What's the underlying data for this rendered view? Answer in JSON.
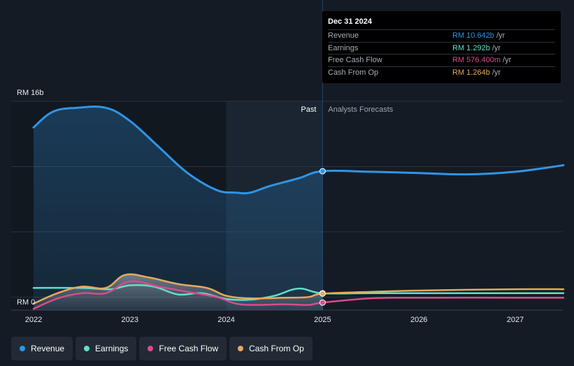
{
  "chart_data": {
    "type": "area",
    "y_top_label": "RM 16b",
    "y_zero_label": "RM 0",
    "ylim": [
      0,
      16
    ],
    "x_ticks": [
      "2022",
      "2023",
      "2024",
      "2025",
      "2026",
      "2027"
    ],
    "past_label": "Past",
    "forecast_label": "Analysts Forecasts",
    "divider_x": 2025.0,
    "highlight_start_x": 2024.0,
    "series": [
      {
        "name": "Revenue",
        "color": "#2f95e6",
        "points": [
          [
            2022.0,
            14.0
          ],
          [
            2022.2,
            15.2
          ],
          [
            2022.45,
            15.5
          ],
          [
            2022.75,
            15.5
          ],
          [
            2023.0,
            14.5
          ],
          [
            2023.3,
            12.5
          ],
          [
            2023.6,
            10.5
          ],
          [
            2023.9,
            9.2
          ],
          [
            2024.1,
            9.0
          ],
          [
            2024.25,
            9.0
          ],
          [
            2024.45,
            9.5
          ],
          [
            2024.75,
            10.1
          ],
          [
            2025.0,
            10.642
          ],
          [
            2025.5,
            10.6
          ],
          [
            2026.0,
            10.5
          ],
          [
            2026.5,
            10.4
          ],
          [
            2027.0,
            10.6
          ],
          [
            2027.5,
            11.1
          ]
        ]
      },
      {
        "name": "Earnings",
        "color": "#5fe0c9",
        "points": [
          [
            2022.0,
            1.7
          ],
          [
            2022.5,
            1.7
          ],
          [
            2022.8,
            1.6
          ],
          [
            2023.0,
            1.9
          ],
          [
            2023.25,
            1.8
          ],
          [
            2023.5,
            1.2
          ],
          [
            2023.75,
            1.3
          ],
          [
            2024.0,
            0.85
          ],
          [
            2024.25,
            0.8
          ],
          [
            2024.5,
            1.1
          ],
          [
            2024.75,
            1.65
          ],
          [
            2025.0,
            1.292
          ],
          [
            2025.5,
            1.3
          ],
          [
            2026.0,
            1.3
          ],
          [
            2027.0,
            1.3
          ],
          [
            2027.5,
            1.3
          ]
        ]
      },
      {
        "name": "Free Cash Flow",
        "color": "#d84c8c",
        "points": [
          [
            2022.0,
            0.1
          ],
          [
            2022.25,
            0.9
          ],
          [
            2022.5,
            1.3
          ],
          [
            2022.75,
            1.3
          ],
          [
            2023.0,
            2.2
          ],
          [
            2023.3,
            1.8
          ],
          [
            2023.6,
            1.4
          ],
          [
            2023.9,
            1.0
          ],
          [
            2024.1,
            0.5
          ],
          [
            2024.3,
            0.4
          ],
          [
            2024.6,
            0.45
          ],
          [
            2024.85,
            0.4
          ],
          [
            2025.0,
            0.5764
          ],
          [
            2025.5,
            0.9
          ],
          [
            2026.0,
            0.95
          ],
          [
            2027.0,
            0.95
          ],
          [
            2027.5,
            0.95
          ]
        ]
      },
      {
        "name": "Cash From Op",
        "color": "#e6a95c",
        "points": [
          [
            2022.0,
            0.5
          ],
          [
            2022.25,
            1.3
          ],
          [
            2022.5,
            1.8
          ],
          [
            2022.75,
            1.7
          ],
          [
            2022.95,
            2.7
          ],
          [
            2023.2,
            2.5
          ],
          [
            2023.5,
            2.0
          ],
          [
            2023.8,
            1.7
          ],
          [
            2024.0,
            1.1
          ],
          [
            2024.25,
            0.9
          ],
          [
            2024.6,
            0.95
          ],
          [
            2024.85,
            1.0
          ],
          [
            2025.0,
            1.264
          ],
          [
            2025.5,
            1.4
          ],
          [
            2026.0,
            1.5
          ],
          [
            2027.0,
            1.6
          ],
          [
            2027.5,
            1.6
          ]
        ]
      }
    ]
  },
  "tooltip": {
    "date": "Dec 31 2024",
    "rows": [
      {
        "name": "Revenue",
        "value": "RM 10.642b",
        "unit": "/yr",
        "color": "#2f95e6"
      },
      {
        "name": "Earnings",
        "value": "RM 1.292b",
        "unit": "/yr",
        "color": "#5fe0c9"
      },
      {
        "name": "Free Cash Flow",
        "value": "RM 576.400m",
        "unit": "/yr",
        "color": "#d84c8c"
      },
      {
        "name": "Cash From Op",
        "value": "RM 1.264b",
        "unit": "/yr",
        "color": "#e6a95c"
      }
    ]
  },
  "legend": [
    {
      "label": "Revenue",
      "color": "#2f95e6"
    },
    {
      "label": "Earnings",
      "color": "#5fe0c9"
    },
    {
      "label": "Free Cash Flow",
      "color": "#d84c8c"
    },
    {
      "label": "Cash From Op",
      "color": "#e6a95c"
    }
  ]
}
